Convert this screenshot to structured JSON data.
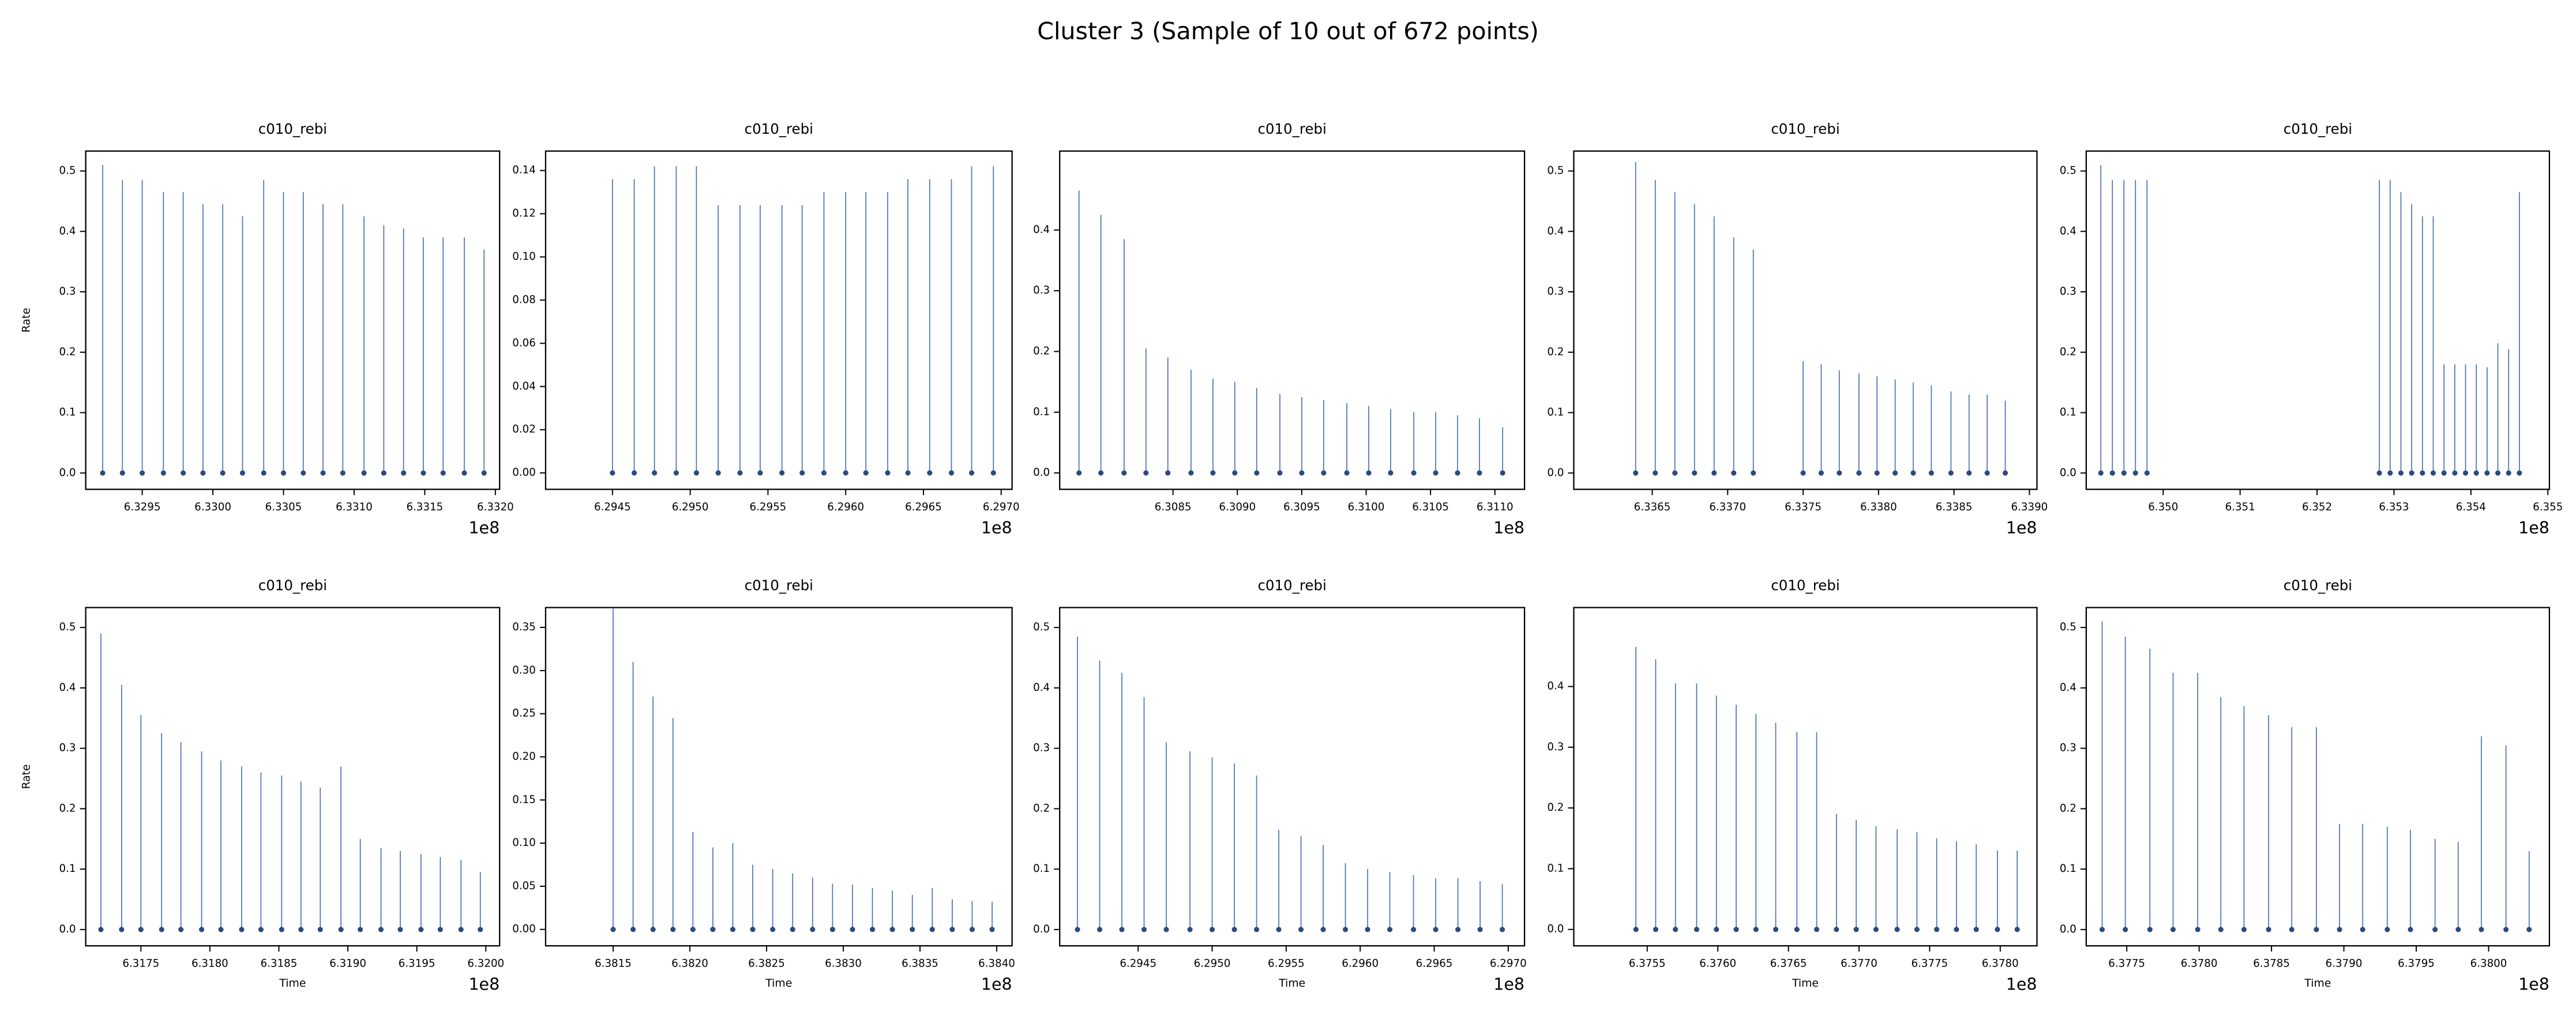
{
  "title": "Cluster 3 (Sample of 10 out of 672 points)",
  "chart_data": [
    {
      "type": "stem",
      "title": "c010_rebi",
      "ylabel": "Rate",
      "x_offset_label": "1e8",
      "color": "#4c72b0",
      "marker_color": "#2b4a80",
      "x": [
        6.32922,
        6.32936,
        6.3295,
        6.32965,
        6.32979,
        6.32993,
        6.33007,
        6.33021,
        6.33036,
        6.3305,
        6.33064,
        6.33078,
        6.33092,
        6.33107,
        6.33121,
        6.33135,
        6.33149,
        6.33163,
        6.33178,
        6.33192
      ],
      "values": [
        0.51,
        0.485,
        0.485,
        0.465,
        0.465,
        0.445,
        0.445,
        0.425,
        0.485,
        0.465,
        0.465,
        0.445,
        0.445,
        0.425,
        0.41,
        0.405,
        0.39,
        0.39,
        0.39,
        0.37
      ],
      "xlim": [
        6.3291,
        6.33203
      ],
      "ylim": [
        -0.027,
        0.533
      ],
      "xticks": [
        6.3295,
        {
          "value": 6.33,
          "label": "6.3300"
        },
        6.3305,
        {
          "value": 6.331,
          "label": "6.3310"
        },
        6.3315,
        {
          "value": 6.332,
          "label": "6.3320"
        }
      ],
      "yticks": [
        {
          "value": 0,
          "label": "0.0"
        },
        0.1,
        0.2,
        0.3,
        0.4,
        0.5
      ]
    },
    {
      "type": "stem",
      "title": "c010_rebi",
      "x_offset_label": "1e8",
      "color": "#4c72b0",
      "marker_color": "#2b4a80",
      "x": [
        6.2945,
        6.29464,
        6.29477,
        6.29491,
        6.29504,
        6.29518,
        6.29532,
        6.29545,
        6.29559,
        6.29572,
        6.29586,
        6.296,
        6.29613,
        6.29627,
        6.2964,
        6.29654,
        6.29668,
        6.29681,
        6.29695
      ],
      "values": [
        0.136,
        0.136,
        0.142,
        0.142,
        0.142,
        0.124,
        0.124,
        0.124,
        0.124,
        0.124,
        0.13,
        0.13,
        0.13,
        0.13,
        0.136,
        0.136,
        0.136,
        0.142,
        0.142
      ],
      "xlim": [
        6.29407,
        6.29707
      ],
      "ylim": [
        -0.0076,
        0.149
      ],
      "xticks": [
        6.2945,
        {
          "value": 6.295,
          "label": "6.2950"
        },
        6.2955,
        {
          "value": 6.296,
          "label": "6.2960"
        },
        6.2965,
        {
          "value": 6.297,
          "label": "6.2970"
        }
      ],
      "yticks": [
        {
          "value": 0,
          "label": "0.00"
        },
        0.02,
        0.04,
        0.06,
        0.08,
        {
          "value": 0.1,
          "label": "0.10"
        },
        0.12,
        0.14
      ]
    },
    {
      "type": "stem",
      "title": "c010_rebi",
      "x_offset_label": "1e8",
      "color": "#4c72b0",
      "marker_color": "#2b4a80",
      "x": [
        6.30777,
        6.30794,
        6.30812,
        6.30829,
        6.30846,
        6.30864,
        6.30881,
        6.30898,
        6.30915,
        6.30933,
        6.3095,
        6.30967,
        6.30985,
        6.31002,
        6.31019,
        6.31037,
        6.31054,
        6.31071,
        6.31088,
        6.31106
      ],
      "values": [
        0.465,
        0.425,
        0.385,
        0.205,
        0.19,
        0.17,
        0.155,
        0.15,
        0.14,
        0.13,
        0.125,
        0.12,
        0.115,
        0.11,
        0.105,
        0.1,
        0.1,
        0.095,
        0.09,
        0.075
      ],
      "xlim": [
        6.30762,
        6.31123
      ],
      "ylim": [
        -0.027,
        0.53
      ],
      "xticks": [
        6.3085,
        {
          "value": 6.309,
          "label": "6.3090"
        },
        6.3095,
        {
          "value": 6.31,
          "label": "6.3100"
        },
        6.3105,
        {
          "value": 6.311,
          "label": "6.3110"
        }
      ],
      "yticks": [
        {
          "value": 0,
          "label": "0.0"
        },
        0.1,
        0.2,
        0.3,
        0.4
      ]
    },
    {
      "type": "stem",
      "title": "c010_rebi",
      "x_offset_label": "1e8",
      "color": "#4c72b0",
      "marker_color": "#2b4a80",
      "x": [
        6.33639,
        6.33652,
        6.33665,
        6.33678,
        6.33691,
        6.33704,
        6.33717,
        6.3375,
        6.33762,
        6.33774,
        6.33787,
        6.33799,
        6.33811,
        6.33823,
        6.33835,
        6.33848,
        6.3386,
        6.33872,
        6.33884
      ],
      "values": [
        0.515,
        0.485,
        0.465,
        0.445,
        0.425,
        0.39,
        0.37,
        0.185,
        0.18,
        0.17,
        0.165,
        0.16,
        0.155,
        0.15,
        0.145,
        0.135,
        0.13,
        0.13,
        0.12
      ],
      "xlim": [
        6.33598,
        6.33905
      ],
      "ylim": [
        -0.027,
        0.533
      ],
      "xticks": [
        6.3365,
        {
          "value": 6.337,
          "label": "6.3370"
        },
        6.3375,
        {
          "value": 6.338,
          "label": "6.3380"
        },
        6.3385,
        {
          "value": 6.339,
          "label": "6.3390"
        }
      ],
      "yticks": [
        {
          "value": 0,
          "label": "0.0"
        },
        0.1,
        0.2,
        0.3,
        0.4,
        0.5
      ]
    },
    {
      "type": "stem",
      "title": "c010_rebi",
      "x_offset_label": "1e8",
      "color": "#4c72b0",
      "marker_color": "#2b4a80",
      "x": [
        6.34919,
        6.34934,
        6.34949,
        6.34964,
        6.34979,
        6.35281,
        6.35295,
        6.35309,
        6.35323,
        6.35337,
        6.35351,
        6.35365,
        6.35379,
        6.35393,
        6.35407,
        6.35421,
        6.35435,
        6.35449,
        6.35463
      ],
      "values": [
        0.51,
        0.485,
        0.485,
        0.485,
        0.485,
        0.485,
        0.485,
        0.465,
        0.445,
        0.425,
        0.425,
        0.18,
        0.18,
        0.18,
        0.18,
        0.175,
        0.215,
        0.205,
        0.465
      ],
      "xlim": [
        6.349,
        6.35502
      ],
      "ylim": [
        -0.027,
        0.533
      ],
      "xticks": [
        {
          "value": 6.35,
          "label": "6.350"
        },
        6.351,
        6.352,
        6.353,
        6.354,
        6.355
      ],
      "yticks": [
        {
          "value": 0,
          "label": "0.0"
        },
        0.1,
        0.2,
        0.3,
        0.4,
        0.5
      ]
    },
    {
      "type": "stem",
      "title": "c010_rebi",
      "ylabel": "Rate",
      "xlabel": "Time",
      "x_offset_label": "1e8",
      "color": "#4c72b0",
      "marker_color": "#2b4a80",
      "x": [
        6.31721,
        6.31736,
        6.3175,
        6.31765,
        6.31779,
        6.31794,
        6.31808,
        6.31823,
        6.31837,
        6.31852,
        6.31866,
        6.3188,
        6.31895,
        6.31909,
        6.31924,
        6.31938,
        6.31953,
        6.31967,
        6.31982,
        6.31996
      ],
      "values": [
        0.49,
        0.405,
        0.355,
        0.325,
        0.31,
        0.295,
        0.28,
        0.27,
        0.26,
        0.255,
        0.245,
        0.235,
        0.27,
        0.15,
        0.135,
        0.13,
        0.125,
        0.12,
        0.115,
        0.095
      ],
      "xlim": [
        6.3171,
        6.3201
      ],
      "ylim": [
        -0.027,
        0.533
      ],
      "xticks": [
        6.3175,
        {
          "value": 6.318,
          "label": "6.3180"
        },
        6.3185,
        {
          "value": 6.319,
          "label": "6.3190"
        },
        6.3195,
        {
          "value": 6.32,
          "label": "6.3200"
        }
      ],
      "yticks": [
        {
          "value": 0,
          "label": "0.0"
        },
        0.1,
        0.2,
        0.3,
        0.4,
        0.5
      ]
    },
    {
      "type": "stem",
      "title": "c010_rebi",
      "xlabel": "Time",
      "x_offset_label": "1e8",
      "color": "#4c72b0",
      "marker_color": "#2b4a80",
      "x": [
        6.3815,
        6.38163,
        6.38176,
        6.38189,
        6.38202,
        6.38215,
        6.38228,
        6.38241,
        6.38254,
        6.38267,
        6.3828,
        6.38293,
        6.38306,
        6.38319,
        6.38332,
        6.38345,
        6.38358,
        6.38371,
        6.38384,
        6.38397
      ],
      "values": [
        0.372,
        0.31,
        0.27,
        0.245,
        0.113,
        0.095,
        0.1,
        0.075,
        0.07,
        0.065,
        0.06,
        0.053,
        0.052,
        0.048,
        0.045,
        0.04,
        0.048,
        0.035,
        0.033,
        0.032
      ],
      "xlim": [
        6.38106,
        6.3841
      ],
      "ylim": [
        -0.019,
        0.373
      ],
      "xticks": [
        6.3815,
        {
          "value": 6.382,
          "label": "6.3820"
        },
        6.3825,
        {
          "value": 6.383,
          "label": "6.3830"
        },
        6.3835,
        {
          "value": 6.384,
          "label": "6.3840"
        }
      ],
      "yticks": [
        {
          "value": 0,
          "label": "0.00"
        },
        0.05,
        {
          "value": 0.1,
          "label": "0.10"
        },
        0.15,
        {
          "value": 0.2,
          "label": "0.20"
        },
        0.25,
        {
          "value": 0.3,
          "label": "0.30"
        },
        0.35
      ]
    },
    {
      "type": "stem",
      "title": "c010_rebi",
      "xlabel": "Time",
      "x_offset_label": "1e8",
      "color": "#4c72b0",
      "marker_color": "#2b4a80",
      "x": [
        6.29409,
        6.29424,
        6.29439,
        6.29454,
        6.29469,
        6.29485,
        6.295,
        6.29515,
        6.2953,
        6.29545,
        6.2956,
        6.29575,
        6.2959,
        6.29605,
        6.2962,
        6.29636,
        6.29651,
        6.29666,
        6.29681,
        6.29696
      ],
      "values": [
        0.485,
        0.445,
        0.425,
        0.385,
        0.31,
        0.295,
        0.285,
        0.275,
        0.255,
        0.165,
        0.155,
        0.14,
        0.11,
        0.1,
        0.095,
        0.09,
        0.085,
        0.085,
        0.08,
        0.075
      ],
      "xlim": [
        6.29397,
        6.29711
      ],
      "ylim": [
        -0.027,
        0.533
      ],
      "xticks": [
        6.2945,
        {
          "value": 6.295,
          "label": "6.2950"
        },
        6.2955,
        {
          "value": 6.296,
          "label": "6.2960"
        },
        6.2965,
        {
          "value": 6.297,
          "label": "6.2970"
        }
      ],
      "yticks": [
        {
          "value": 0,
          "label": "0.0"
        },
        0.1,
        0.2,
        0.3,
        0.4,
        0.5
      ]
    },
    {
      "type": "stem",
      "title": "c010_rebi",
      "xlabel": "Time",
      "x_offset_label": "1e8",
      "color": "#4c72b0",
      "marker_color": "#2b4a80",
      "x": [
        6.37542,
        6.37556,
        6.3757,
        6.37585,
        6.37599,
        6.37613,
        6.37627,
        6.37641,
        6.37656,
        6.3767,
        6.37684,
        6.37698,
        6.37712,
        6.37727,
        6.37741,
        6.37755,
        6.37769,
        6.37783,
        6.37798,
        6.37812
      ],
      "values": [
        0.465,
        0.445,
        0.405,
        0.405,
        0.385,
        0.37,
        0.355,
        0.34,
        0.325,
        0.325,
        0.19,
        0.18,
        0.17,
        0.165,
        0.16,
        0.15,
        0.145,
        0.14,
        0.13,
        0.13
      ],
      "xlim": [
        6.37498,
        6.37826
      ],
      "ylim": [
        -0.027,
        0.53
      ],
      "xticks": [
        6.3755,
        {
          "value": 6.376,
          "label": "6.3760"
        },
        6.3765,
        {
          "value": 6.377,
          "label": "6.3770"
        },
        6.3775,
        {
          "value": 6.378,
          "label": "6.3780"
        }
      ],
      "yticks": [
        {
          "value": 0,
          "label": "0.0"
        },
        0.1,
        0.2,
        0.3,
        0.4
      ]
    },
    {
      "type": "stem",
      "title": "c010_rebi",
      "xlabel": "Time",
      "x_offset_label": "1e8",
      "color": "#4c72b0",
      "marker_color": "#2b4a80",
      "x": [
        6.37733,
        6.37749,
        6.37766,
        6.37782,
        6.37799,
        6.37815,
        6.37831,
        6.37848,
        6.37864,
        6.37881,
        6.37897,
        6.37913,
        6.3793,
        6.37946,
        6.37963,
        6.37979,
        6.37995,
        6.38012,
        6.38028
      ],
      "values": [
        0.51,
        0.485,
        0.465,
        0.425,
        0.425,
        0.385,
        0.37,
        0.355,
        0.335,
        0.335,
        0.175,
        0.175,
        0.17,
        0.165,
        0.15,
        0.145,
        0.32,
        0.305,
        0.13
      ],
      "xlim": [
        6.37722,
        6.38042
      ],
      "ylim": [
        -0.027,
        0.533
      ],
      "xticks": [
        6.3775,
        {
          "value": 6.378,
          "label": "6.3780"
        },
        6.3785,
        {
          "value": 6.379,
          "label": "6.3790"
        },
        6.3795,
        {
          "value": 6.38,
          "label": "6.3800"
        }
      ],
      "yticks": [
        {
          "value": 0,
          "label": "0.0"
        },
        0.1,
        0.2,
        0.3,
        0.4,
        0.5
      ]
    }
  ]
}
